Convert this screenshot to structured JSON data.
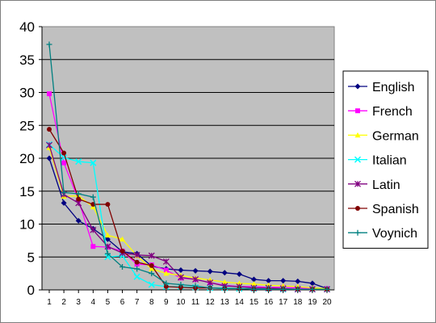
{
  "chart_data": {
    "type": "line",
    "title": "",
    "xlabel": "",
    "ylabel": "",
    "x": [
      1,
      2,
      3,
      4,
      5,
      6,
      7,
      8,
      9,
      10,
      11,
      12,
      13,
      14,
      15,
      16,
      17,
      18,
      19,
      20
    ],
    "ylim": [
      0,
      40
    ],
    "yticks": [
      0,
      5,
      10,
      15,
      20,
      25,
      30,
      35,
      40
    ],
    "grid": "horizontal",
    "plot_background": "#c0c0c0",
    "legend_position": "right",
    "series": [
      {
        "name": "English",
        "color": "#000080",
        "marker": "diamond",
        "values": [
          20.0,
          13.2,
          10.5,
          9.3,
          7.7,
          5.8,
          5.5,
          3.6,
          3.2,
          3.0,
          2.9,
          2.8,
          2.6,
          2.4,
          1.6,
          1.4,
          1.4,
          1.3,
          1.0,
          0.2
        ]
      },
      {
        "name": "French",
        "color": "#ff00ff",
        "marker": "square",
        "values": [
          29.8,
          19.3,
          13.7,
          6.6,
          6.5,
          5.9,
          3.9,
          3.8,
          3.0,
          1.8,
          1.6,
          1.1,
          0.7,
          0.5,
          0.5,
          0.4,
          0.4,
          0.3,
          0.2,
          0.2
        ]
      },
      {
        "name": "German",
        "color": "#ffff00",
        "marker": "triangle",
        "values": [
          21.6,
          14.2,
          14.3,
          12.6,
          8.3,
          7.7,
          5.2,
          3.2,
          2.5,
          2.2,
          1.8,
          1.5,
          1.2,
          1.0,
          0.9,
          0.7,
          0.6,
          0.5,
          0.3,
          0.2
        ]
      },
      {
        "name": "Italian",
        "color": "#00ffff",
        "marker": "x",
        "values": [
          22.1,
          20.1,
          19.5,
          19.3,
          5.0,
          5.2,
          2.0,
          0.8,
          0.5,
          0.5,
          0.4,
          0.3,
          0.3,
          0.2,
          0.2,
          0.2,
          0.1,
          0.1,
          0.1,
          0.1
        ]
      },
      {
        "name": "Latin",
        "color": "#800080",
        "marker": "star",
        "values": [
          22.0,
          14.5,
          13.2,
          9.1,
          6.6,
          5.6,
          5.3,
          5.2,
          4.3,
          1.9,
          1.6,
          1.1,
          0.6,
          0.5,
          0.3,
          0.3,
          0.2,
          0.1,
          0.1,
          0.1
        ]
      },
      {
        "name": "Spanish",
        "color": "#800000",
        "marker": "circle",
        "values": [
          24.4,
          20.8,
          13.8,
          13.0,
          13.0,
          5.9,
          4.2,
          3.7,
          0.5,
          0.4,
          0.3,
          0.3,
          0.2,
          0.2,
          0.1,
          0.1,
          0.1,
          0.1,
          0.1,
          0.1
        ]
      },
      {
        "name": "Voynich",
        "color": "#008080",
        "marker": "plus",
        "values": [
          37.3,
          14.8,
          14.6,
          14.1,
          5.5,
          3.5,
          3.2,
          2.5,
          1.0,
          0.8,
          0.6,
          0.3,
          0.2,
          0.2,
          0.1,
          0.1,
          0.1,
          0.1,
          0.1,
          0.1
        ]
      }
    ]
  }
}
